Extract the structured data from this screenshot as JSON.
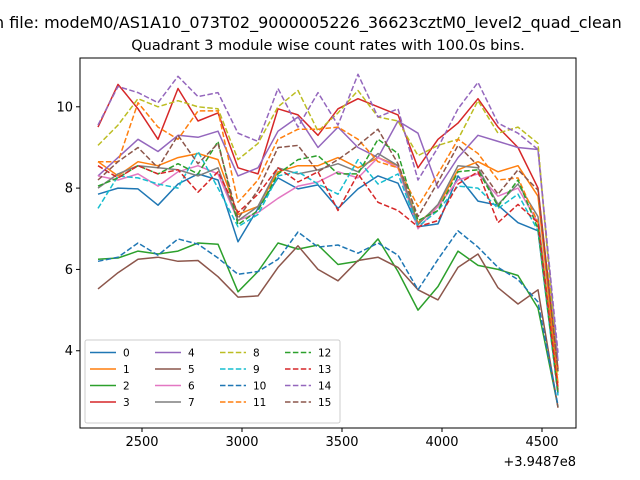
{
  "figure": {
    "suptitle": "n file: modeM0/AS1A10_073T02_9000005226_36623cztM0_level2_quad_clean",
    "title": "Quadrant 3 module wise count rates with 100.0s bins.",
    "offset_label": "+3.9487e8"
  },
  "chart_data": {
    "type": "line",
    "title": "Quadrant 3 module wise count rates with 100.0s bins.",
    "xlabel": "",
    "ylabel": "",
    "xlim": [
      2190,
      4670
    ],
    "ylim": [
      2.1,
      11.2
    ],
    "x_offset": 394870000,
    "xticks": [
      2500,
      3000,
      3500,
      4000,
      4500
    ],
    "yticks": [
      4,
      6,
      8,
      10
    ],
    "grid": false,
    "legend": {
      "position": "lower-left",
      "columns": 4
    },
    "x": [
      2280,
      2380,
      2480,
      2580,
      2680,
      2780,
      2880,
      2980,
      3080,
      3180,
      3280,
      3380,
      3480,
      3580,
      3680,
      3780,
      3880,
      3980,
      4080,
      4180,
      4280,
      4380,
      4480,
      4580
    ],
    "series": [
      {
        "name": "0",
        "style": "solid",
        "color": "#1f77b4",
        "values": [
          7.85,
          8.0,
          7.98,
          7.58,
          8.1,
          8.35,
          8.2,
          6.68,
          7.5,
          8.25,
          7.98,
          8.08,
          7.5,
          7.98,
          8.3,
          8.12,
          7.05,
          7.12,
          8.3,
          7.68,
          7.58,
          7.15,
          6.95,
          2.95
        ]
      },
      {
        "name": "1",
        "style": "solid",
        "color": "#ff7f0e",
        "values": [
          8.65,
          8.3,
          8.65,
          8.55,
          8.75,
          8.85,
          8.7,
          7.35,
          7.55,
          8.4,
          8.55,
          8.55,
          8.75,
          8.5,
          8.75,
          8.55,
          7.15,
          7.55,
          8.45,
          8.65,
          8.4,
          8.55,
          7.8,
          3.2
        ]
      },
      {
        "name": "2",
        "style": "solid",
        "color": "#2ca02c",
        "values": [
          6.25,
          6.28,
          6.45,
          6.38,
          6.45,
          6.65,
          6.62,
          5.45,
          5.95,
          6.65,
          6.5,
          6.6,
          6.12,
          6.2,
          6.75,
          5.95,
          5.0,
          5.58,
          6.45,
          6.1,
          6.0,
          5.85,
          5.05,
          2.62
        ]
      },
      {
        "name": "3",
        "style": "solid",
        "color": "#d62728",
        "values": [
          9.5,
          10.55,
          9.95,
          9.2,
          10.45,
          9.65,
          9.85,
          8.5,
          8.35,
          9.95,
          9.8,
          9.3,
          9.95,
          10.2,
          10.0,
          9.8,
          8.5,
          9.2,
          9.6,
          10.2,
          9.5,
          9.0,
          8.0,
          3.55
        ]
      },
      {
        "name": "4",
        "style": "solid",
        "color": "#9467bd",
        "values": [
          8.3,
          8.75,
          9.2,
          8.9,
          9.3,
          9.25,
          9.4,
          8.3,
          8.5,
          9.4,
          9.75,
          9.0,
          9.5,
          9.0,
          8.75,
          9.65,
          9.35,
          8.0,
          8.75,
          9.3,
          9.15,
          9.0,
          8.95,
          3.75
        ]
      },
      {
        "name": "5",
        "style": "solid",
        "color": "#8c564b",
        "values": [
          5.52,
          5.92,
          6.25,
          6.3,
          6.2,
          6.22,
          5.82,
          5.32,
          5.35,
          6.05,
          6.58,
          6.0,
          5.72,
          6.22,
          6.3,
          6.05,
          5.5,
          5.25,
          6.05,
          6.38,
          5.55,
          5.15,
          5.5,
          2.6
        ]
      },
      {
        "name": "6",
        "style": "solid",
        "color": "#e377c2",
        "values": [
          8.3,
          8.2,
          8.35,
          8.05,
          8.4,
          8.55,
          8.35,
          7.2,
          7.4,
          7.75,
          8.05,
          8.15,
          8.4,
          8.25,
          8.75,
          8.5,
          7.0,
          7.55,
          8.2,
          8.35,
          7.8,
          8.0,
          7.15,
          3.05
        ]
      },
      {
        "name": "7",
        "style": "solid",
        "color": "#7f7f7f",
        "values": [
          8.0,
          8.35,
          8.55,
          8.5,
          8.45,
          8.3,
          8.5,
          7.2,
          7.55,
          8.5,
          8.35,
          8.45,
          8.6,
          8.4,
          8.85,
          8.55,
          7.1,
          7.6,
          8.55,
          8.5,
          7.6,
          8.1,
          7.3,
          3.0
        ]
      },
      {
        "name": "8",
        "style": "dashed",
        "color": "#bcbd22",
        "values": [
          9.05,
          9.55,
          10.2,
          10.0,
          10.15,
          10.0,
          9.95,
          8.7,
          9.1,
          10.0,
          10.4,
          9.4,
          9.85,
          10.4,
          9.75,
          9.65,
          8.8,
          9.05,
          9.2,
          10.15,
          9.35,
          9.5,
          9.1,
          3.4
        ]
      },
      {
        "name": "9",
        "style": "dashed",
        "color": "#17becf",
        "values": [
          7.5,
          8.3,
          8.25,
          8.1,
          8.0,
          8.9,
          8.0,
          7.05,
          7.35,
          8.3,
          8.4,
          8.1,
          7.85,
          8.7,
          8.1,
          8.35,
          7.05,
          7.45,
          8.05,
          8.0,
          7.5,
          7.85,
          6.95,
          2.9
        ]
      },
      {
        "name": "10",
        "style": "dashed",
        "color": "#1f77b4",
        "values": [
          6.2,
          6.3,
          6.65,
          6.35,
          6.75,
          6.62,
          6.28,
          5.88,
          5.95,
          6.25,
          6.92,
          6.55,
          6.6,
          6.4,
          6.65,
          6.35,
          5.5,
          6.25,
          6.95,
          6.55,
          6.05,
          5.75,
          5.2,
          2.65
        ]
      },
      {
        "name": "11",
        "style": "dashed",
        "color": "#ff7f0e",
        "values": [
          8.65,
          8.65,
          10.1,
          9.5,
          9.2,
          9.9,
          9.9,
          7.65,
          8.2,
          9.2,
          9.45,
          9.45,
          9.5,
          9.2,
          8.65,
          8.5,
          7.55,
          8.35,
          9.2,
          8.85,
          8.2,
          8.25,
          7.15,
          3.1
        ]
      },
      {
        "name": "12",
        "style": "dashed",
        "color": "#2ca02c",
        "values": [
          8.05,
          8.25,
          8.55,
          8.35,
          8.6,
          8.35,
          9.15,
          7.1,
          7.45,
          8.35,
          8.7,
          8.8,
          8.35,
          8.35,
          9.2,
          8.85,
          7.2,
          7.45,
          8.4,
          8.45,
          7.55,
          8.2,
          7.0,
          2.95
        ]
      },
      {
        "name": "13",
        "style": "dashed",
        "color": "#d62728",
        "values": [
          8.55,
          8.25,
          8.55,
          8.35,
          8.45,
          7.9,
          8.4,
          7.4,
          7.85,
          8.5,
          8.15,
          8.4,
          7.45,
          8.35,
          7.65,
          7.45,
          7.05,
          7.2,
          8.1,
          8.4,
          7.15,
          7.6,
          7.15,
          3.05
        ]
      },
      {
        "name": "14",
        "style": "dashed",
        "color": "#9467bd",
        "values": [
          9.55,
          10.5,
          10.35,
          10.1,
          10.75,
          10.25,
          10.35,
          9.35,
          9.15,
          10.45,
          9.5,
          10.35,
          9.55,
          10.8,
          9.75,
          9.95,
          8.2,
          9.0,
          9.95,
          10.6,
          9.6,
          9.35,
          8.95,
          3.95
        ]
      },
      {
        "name": "15",
        "style": "dashed",
        "color": "#8c564b",
        "values": [
          8.2,
          8.65,
          9.0,
          8.5,
          9.3,
          8.6,
          9.1,
          7.25,
          7.95,
          9.0,
          9.05,
          8.4,
          8.7,
          9.05,
          9.45,
          8.6,
          7.3,
          8.15,
          9.05,
          8.55,
          7.85,
          8.45,
          7.95,
          3.5
        ]
      }
    ]
  }
}
